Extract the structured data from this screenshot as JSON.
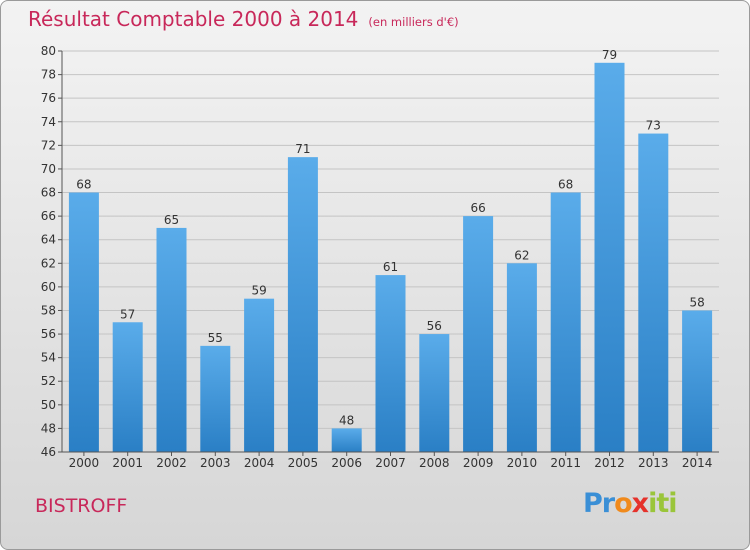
{
  "header": {
    "title": "Résultat Comptable 2000 à 2014",
    "subtitle": "(en milliers d'€)"
  },
  "footer": {
    "place": "BISTROFF",
    "logo": "Proxiti"
  },
  "colors": {
    "title": "#c8285a",
    "bar_top": "#5aacea",
    "bar_bottom": "#2a7fc5"
  },
  "chart_data": {
    "type": "bar",
    "categories": [
      "2000",
      "2001",
      "2002",
      "2003",
      "2004",
      "2005",
      "2006",
      "2007",
      "2008",
      "2009",
      "2010",
      "2011",
      "2012",
      "2013",
      "2014"
    ],
    "values": [
      68,
      57,
      65,
      55,
      59,
      71,
      48,
      61,
      56,
      66,
      62,
      68,
      79,
      73,
      58
    ],
    "title": "Résultat Comptable 2000 à 2014",
    "subtitle": "(en milliers d'€)",
    "ylim": [
      46,
      80
    ],
    "yticks": [
      46,
      48,
      50,
      52,
      54,
      56,
      58,
      60,
      62,
      64,
      66,
      68,
      70,
      72,
      74,
      76,
      78,
      80
    ],
    "grid": true,
    "data_labels": true
  }
}
